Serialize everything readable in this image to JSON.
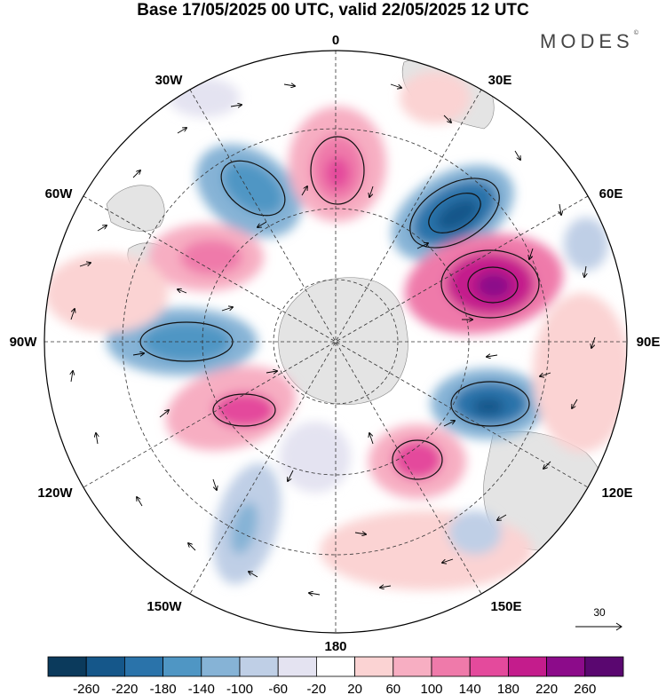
{
  "title": "Base 17/05/2025 00 UTC, valid 22/05/2025 12 UTC",
  "brand": "MODES",
  "brand_mark": "©",
  "projection": "south-polar-stereographic",
  "longitude_labels": {
    "top": "0",
    "top_right": "30E",
    "upper_right": "60E",
    "right": "90E",
    "lower_right": "120E",
    "bottom_right": "150E",
    "bottom": "180",
    "bottom_left": "150W",
    "lower_left": "120W",
    "left": "90W",
    "upper_left": "60W",
    "top_left": "30W"
  },
  "vector_reference": {
    "label": "30",
    "icon": "arrow-right-icon"
  },
  "colorbar": {
    "labels": [
      "-260",
      "-220",
      "-180",
      "-140",
      "-100",
      "-60",
      "-20",
      "20",
      "60",
      "100",
      "140",
      "180",
      "220",
      "260"
    ],
    "colors": [
      "#0b3a5c",
      "#15578a",
      "#2a73aa",
      "#4f96c4",
      "#86b3d6",
      "#bfcfe6",
      "#e4e3f1",
      "#ffffff",
      "#fbd3d3",
      "#f7aec2",
      "#ef7aaa",
      "#e44a9c",
      "#c41c8c",
      "#8c0b8a",
      "#5a0770"
    ]
  }
}
